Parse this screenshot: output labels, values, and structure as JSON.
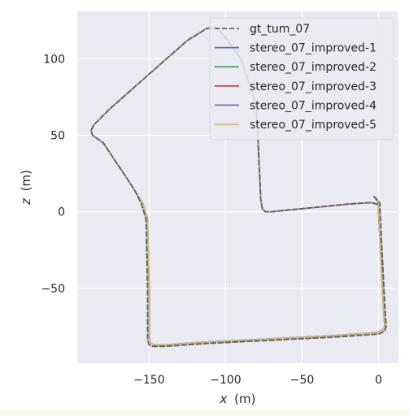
{
  "chart_data": {
    "type": "line",
    "xlabel_var": "x",
    "xlabel_unit": "(m)",
    "ylabel_var": "z",
    "ylabel_unit": "(m)",
    "xlim": [
      -197,
      13
    ],
    "ylim": [
      -99,
      131
    ],
    "xticks": [
      -150,
      -100,
      -50,
      0
    ],
    "yticks": [
      -50,
      0,
      50,
      100
    ],
    "xtick_labels": [
      "−150",
      "−100",
      "−50",
      "0"
    ],
    "ytick_labels": [
      "−50",
      "0",
      "50",
      "100"
    ],
    "grid": true,
    "legend_position": "upper-right",
    "background": "#eaeaf2",
    "series": [
      {
        "name": "gt_tum_07",
        "style": "dashed",
        "color": "#606060",
        "x": [
          -3,
          0,
          1,
          1,
          2,
          3,
          4,
          5,
          4,
          0,
          -30,
          -70,
          -110,
          -140,
          -148,
          -150,
          -151,
          -151,
          -152,
          -155,
          -160,
          -170,
          -180,
          -187,
          -188,
          -186,
          -176,
          -150,
          -125,
          -112,
          -106,
          -101,
          -90,
          -80,
          -78,
          -77,
          -76,
          -74,
          -72,
          -70,
          -60,
          -40,
          -20,
          -5,
          -1,
          0
        ],
        "y": [
          10,
          7,
          5,
          0,
          -20,
          -40,
          -60,
          -75,
          -78,
          -80,
          -82,
          -84,
          -86,
          -88,
          -88,
          -87,
          -84,
          -50,
          -5,
          5,
          15,
          30,
          45,
          50,
          53,
          57,
          67,
          90,
          112,
          120,
          120,
          115,
          100,
          70,
          30,
          8,
          2,
          0,
          0,
          0,
          1,
          3,
          5,
          6,
          5,
          4
        ]
      },
      {
        "name": "stereo_07_improved-1",
        "style": "solid",
        "color": "#4c72b0",
        "x": [
          -3,
          -1,
          0,
          0,
          1,
          2,
          3,
          4,
          3,
          -1,
          -30,
          -70,
          -110,
          -140,
          -147,
          -149,
          -150,
          -150,
          -151,
          -154,
          -160,
          -170,
          -180,
          -187,
          -188,
          -186,
          -176,
          -150,
          -125,
          -112,
          -106,
          -101,
          -90,
          -80,
          -78,
          -77,
          -76,
          -74,
          -72,
          -70,
          -60,
          -40,
          -20,
          -5,
          -1,
          0
        ],
        "y": [
          10,
          7,
          5,
          0,
          -20,
          -40,
          -60,
          -75,
          -77,
          -79,
          -81,
          -83,
          -85,
          -87,
          -87,
          -86,
          -83,
          -50,
          -5,
          5,
          15,
          30,
          45,
          50,
          53,
          57,
          67,
          90,
          112,
          120,
          120,
          115,
          100,
          70,
          30,
          8,
          2,
          0,
          0,
          0,
          1,
          3,
          5,
          6,
          5,
          4
        ]
      },
      {
        "name": "stereo_07_improved-2",
        "style": "solid",
        "color": "#55a868",
        "x": [
          -3,
          -1,
          0,
          0,
          1,
          2,
          3,
          4,
          3,
          -1,
          -30,
          -70,
          -110,
          -140,
          -147,
          -149,
          -150,
          -150,
          -151,
          -154,
          -160,
          -170,
          -180,
          -187,
          -188,
          -186,
          -176,
          -150,
          -125,
          -112,
          -106,
          -101,
          -90,
          -80,
          -78,
          -77,
          -76,
          -74,
          -72,
          -70,
          -60,
          -40,
          -20,
          -5,
          -1,
          0
        ],
        "y": [
          10,
          7,
          5,
          0,
          -20,
          -40,
          -60,
          -75,
          -77,
          -79,
          -81,
          -83,
          -85,
          -87,
          -87,
          -86,
          -83,
          -50,
          -5,
          5,
          15,
          30,
          45,
          50,
          53,
          57,
          67,
          90,
          112,
          120,
          120,
          115,
          100,
          70,
          30,
          8,
          2,
          0,
          0,
          0,
          1,
          3,
          5,
          6,
          5,
          4
        ]
      },
      {
        "name": "stereo_07_improved-3",
        "style": "solid",
        "color": "#c44e52",
        "x": [
          -3,
          -1,
          0,
          0,
          1,
          2,
          3,
          4,
          3,
          -1,
          -30,
          -70,
          -110,
          -140,
          -147,
          -149,
          -150,
          -150,
          -151,
          -154,
          -160,
          -170,
          -180,
          -187,
          -188,
          -186,
          -176,
          -150,
          -125,
          -112,
          -106,
          -101,
          -90,
          -80,
          -78,
          -77,
          -76,
          -74,
          -72,
          -70,
          -60,
          -40,
          -20,
          -5,
          -1,
          0
        ],
        "y": [
          10,
          7,
          5,
          0,
          -20,
          -40,
          -60,
          -75,
          -77,
          -79,
          -81,
          -83,
          -85,
          -87,
          -87,
          -86,
          -83,
          -50,
          -5,
          5,
          15,
          30,
          45,
          50,
          53,
          57,
          67,
          90,
          112,
          120,
          120,
          115,
          100,
          70,
          30,
          8,
          2,
          0,
          0,
          0,
          1,
          3,
          5,
          6,
          5,
          4
        ]
      },
      {
        "name": "stereo_07_improved-4",
        "style": "solid",
        "color": "#8172b3",
        "x": [
          -3,
          -1,
          0,
          0,
          1,
          2,
          3,
          4,
          3,
          -1,
          -30,
          -70,
          -110,
          -140,
          -147,
          -149,
          -150,
          -150,
          -151,
          -154,
          -160,
          -170,
          -180,
          -187,
          -188,
          -186,
          -176,
          -150,
          -125,
          -112,
          -106,
          -101,
          -90,
          -80,
          -78,
          -77,
          -76,
          -74,
          -72,
          -70,
          -60,
          -40,
          -20,
          -5,
          -1,
          0
        ],
        "y": [
          10,
          7,
          5,
          0,
          -20,
          -40,
          -60,
          -75,
          -77,
          -79,
          -81,
          -83,
          -85,
          -87,
          -87,
          -86,
          -83,
          -50,
          -5,
          5,
          15,
          30,
          45,
          50,
          53,
          57,
          67,
          90,
          112,
          120,
          120,
          115,
          100,
          70,
          30,
          8,
          2,
          0,
          0,
          0,
          1,
          3,
          5,
          6,
          5,
          4
        ]
      },
      {
        "name": "stereo_07_improved-5",
        "style": "solid",
        "color": "#ccb974",
        "x": [
          -3,
          -1,
          0,
          0,
          1,
          2,
          3,
          4,
          3,
          -1,
          -30,
          -70,
          -110,
          -140,
          -147,
          -149,
          -150,
          -150,
          -151,
          -154,
          -160,
          -170,
          -180,
          -187,
          -188,
          -186,
          -176,
          -150,
          -125,
          -112,
          -106,
          -101,
          -90,
          -80,
          -78,
          -77,
          -76,
          -74,
          -72,
          -70,
          -60,
          -40,
          -20,
          -5,
          -1,
          0
        ],
        "y": [
          10,
          7,
          5,
          0,
          -20,
          -40,
          -60,
          -75,
          -77,
          -79,
          -81,
          -83,
          -85,
          -87,
          -87,
          -86,
          -83,
          -50,
          -5,
          5,
          15,
          30,
          45,
          50,
          53,
          57,
          67,
          90,
          112,
          120,
          120,
          115,
          100,
          70,
          30,
          8,
          2,
          0,
          0,
          0,
          1,
          3,
          5,
          6,
          5,
          4
        ]
      }
    ]
  }
}
